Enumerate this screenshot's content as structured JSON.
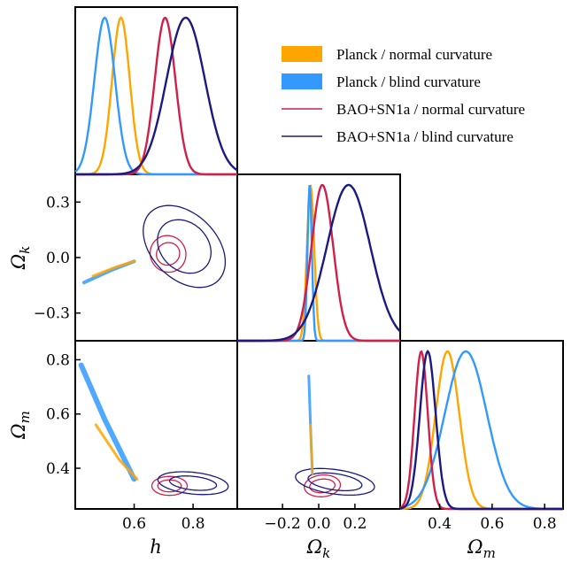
{
  "colors": {
    "planck_normal": "#FFA500",
    "planck_blind": "#3399FF",
    "bao_normal": "#D0204A",
    "bao_blind": "#1A1A80"
  },
  "legend": [
    {
      "label": "Planck / normal curvature",
      "style": "filled",
      "color_key": "planck_normal"
    },
    {
      "label": "Planck / blind curvature",
      "style": "filled",
      "color_key": "planck_blind"
    },
    {
      "label": "BAO+SN1a / normal curvature",
      "style": "line",
      "color_key": "bao_normal"
    },
    {
      "label": "BAO+SN1a / blind curvature",
      "style": "line",
      "color_key": "bao_blind"
    }
  ],
  "axes": {
    "h": {
      "label": "h",
      "range": [
        0.4,
        0.95
      ],
      "ticks": [
        0.6,
        0.8
      ],
      "tick_labels": [
        "0.6",
        "0.8"
      ]
    },
    "ok": {
      "label": "Ωk",
      "label_base": "Ω",
      "label_sub": "k",
      "range": [
        -0.45,
        0.45
      ],
      "ticks": [
        -0.3,
        0.0,
        0.3
      ],
      "tick_labels": [
        "−0.3",
        "0.0",
        "0.3"
      ],
      "x_ticks": [
        -0.2,
        0.0,
        0.2
      ],
      "x_tick_labels": [
        "−0.2",
        "0.0",
        "0.2"
      ]
    },
    "om": {
      "label": "Ωm",
      "label_base": "Ω",
      "label_sub": "m",
      "range": [
        0.25,
        0.87
      ],
      "ticks": [
        0.4,
        0.6,
        0.8
      ],
      "tick_labels": [
        "0.4",
        "0.6",
        "0.8"
      ]
    }
  },
  "chart_data": {
    "type": "triangle-corner-plot",
    "parameters": [
      "h",
      "Ωk",
      "Ωm"
    ],
    "series": [
      {
        "name": "Planck / normal curvature",
        "color_key": "planck_normal",
        "h_mean": 0.555,
        "h_sigma": 0.03,
        "ok_mean": -0.045,
        "ok_sigma": 0.02,
        "om_mean": 0.43,
        "om_sigma": 0.045
      },
      {
        "name": "Planck / blind curvature",
        "color_key": "planck_blind",
        "h_mean": 0.5,
        "h_sigma": 0.035,
        "ok_mean": -0.05,
        "ok_sigma": 0.012,
        "om_mean": 0.5,
        "om_sigma": 0.08
      },
      {
        "name": "BAO+SN1a / normal curvature",
        "color_key": "bao_normal",
        "h_mean": 0.705,
        "h_sigma": 0.035,
        "ok_mean": 0.02,
        "ok_sigma": 0.06,
        "om_mean": 0.33,
        "om_sigma": 0.025
      },
      {
        "name": "BAO+SN1a / blind curvature",
        "color_key": "bao_blind",
        "h_mean": 0.775,
        "h_sigma": 0.065,
        "ok_mean": 0.165,
        "ok_sigma": 0.12,
        "om_mean": 0.355,
        "om_sigma": 0.03
      }
    ],
    "contours": {
      "h_ok": [
        {
          "color_key": "bao_normal",
          "cx": 0.715,
          "cy": 0.02,
          "ellipses": [
            [
              0.04,
              0.06,
              -30
            ],
            [
              0.06,
              0.1,
              -30
            ]
          ]
        },
        {
          "color_key": "bao_blind",
          "cx": 0.77,
          "cy": 0.06,
          "ellipses": [
            [
              0.08,
              0.16,
              -45
            ],
            [
              0.11,
              0.26,
              -45
            ]
          ]
        }
      ],
      "ok_om": [
        {
          "color_key": "bao_normal",
          "cx": 0.02,
          "cy": 0.335,
          "ellipses": [
            [
              0.07,
              0.025,
              -5
            ],
            [
              0.1,
              0.04,
              -5
            ]
          ]
        },
        {
          "color_key": "bao_blind",
          "cx": 0.09,
          "cy": 0.35,
          "ellipses": [
            [
              0.15,
              0.03,
              8
            ],
            [
              0.22,
              0.045,
              8
            ]
          ]
        }
      ],
      "h_om": [
        {
          "color_key": "bao_normal",
          "cx": 0.72,
          "cy": 0.335,
          "ellipses": [
            [
              0.04,
              0.022,
              0
            ],
            [
              0.06,
              0.035,
              0
            ]
          ]
        },
        {
          "color_key": "bao_blind",
          "cx": 0.8,
          "cy": 0.345,
          "ellipses": [
            [
              0.08,
              0.025,
              6
            ],
            [
              0.12,
              0.04,
              6
            ]
          ]
        }
      ]
    }
  }
}
